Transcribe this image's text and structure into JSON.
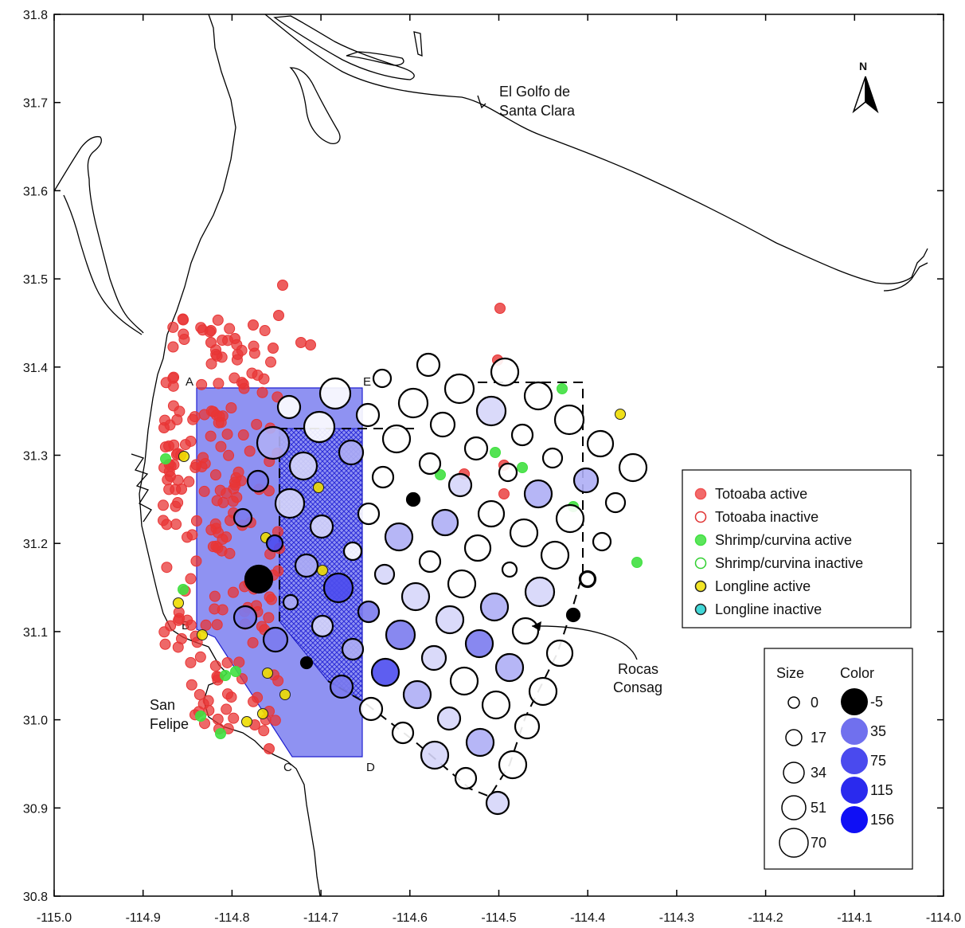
{
  "axes": {
    "x_ticks": [
      "-115.0",
      "-114.9",
      "-114.8",
      "-114.7",
      "-114.6",
      "-114.5",
      "-114.4",
      "-114.3",
      "-114.2",
      "-114.1",
      "-114.0"
    ],
    "y_ticks": [
      "31.8",
      "31.7",
      "31.6",
      "31.5",
      "31.4",
      "31.3",
      "31.2",
      "31.1",
      "31.0",
      "30.9",
      "30.8"
    ],
    "xlim": [
      -115.0,
      -114.0
    ],
    "ylim": [
      30.8,
      31.8
    ]
  },
  "places": {
    "golfo_line1": "El Golfo de",
    "golfo_line2": "Santa Clara",
    "san_felipe_line1": "San",
    "san_felipe_line2": "Felipe",
    "rocas_line1": "Rocas",
    "rocas_line2": "Consag"
  },
  "north_arrow": {
    "label": "N",
    "icon": "north-arrow-icon"
  },
  "polygon_corners": {
    "A": "A",
    "B": "B",
    "C": "C",
    "D": "D",
    "E": "E"
  },
  "legend_types": [
    {
      "label": "Totoaba active",
      "fill": "#f05050",
      "stroke": "#f05050"
    },
    {
      "label": "Totoaba inactive",
      "fill": "#ffffff",
      "stroke": "#e03030"
    },
    {
      "label": "Shrimp/curvina active",
      "fill": "#40e040",
      "stroke": "#40e040"
    },
    {
      "label": "Shrimp/curvina inactive",
      "fill": "#ffffff",
      "stroke": "#30d030"
    },
    {
      "label": "Longline active",
      "fill": "#f0e000",
      "stroke": "#222222"
    },
    {
      "label": "Longline inactive",
      "fill": "#20d0d0",
      "stroke": "#222222"
    }
  ],
  "legend_size": {
    "title": "Size",
    "values": [
      "0",
      "17",
      "34",
      "51",
      "70"
    ]
  },
  "legend_color": {
    "title": "Color",
    "values": [
      "-5",
      "35",
      "75",
      "115",
      "156"
    ],
    "colors": [
      "#000000",
      "#7070ee",
      "#4a4aee",
      "#2a2aee",
      "#0f0ff5"
    ]
  },
  "colors": {
    "zone_fill": "#7b7ff0",
    "zone_stroke": "#2020d0",
    "totoaba": "#ee3333",
    "shrimp": "#33dd33",
    "longline": "#eedd00"
  }
}
